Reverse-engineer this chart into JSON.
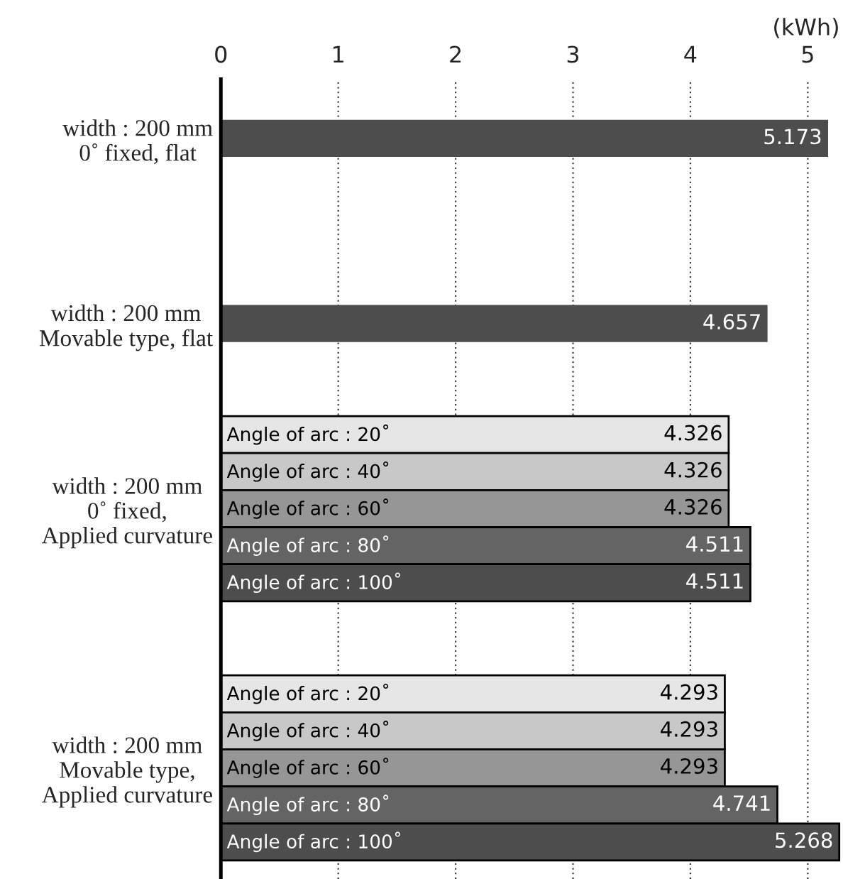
{
  "chart_data": {
    "type": "bar",
    "orientation": "horizontal",
    "xlabel": "(kWh)",
    "categories": [
      "width : 200 mm\n0˚ fixed, flat",
      null,
      null,
      null,
      null,
      "width : 200 mm\nMovable type, flat",
      null,
      null,
      null,
      null,
      "width : 200 mm\n0˚ fixed,\nApplied curvature",
      null,
      null,
      null,
      null,
      null,
      null,
      "width : 200 mm\nMovable type,\nApplied curvature",
      null,
      null
    ],
    "values": [
      5.173,
      null,
      null,
      null,
      null,
      4.657,
      null,
      null,
      4.326,
      4.326,
      4.326,
      4.511,
      4.511,
      null,
      null,
      4.293,
      4.293,
      4.293,
      4.741,
      5.268
    ],
    "colors": [
      "#4d4d4d",
      null,
      null,
      null,
      null,
      "#4d4d4d",
      null,
      null,
      "#e6e6e6",
      "#c8c8c8",
      "#969696",
      "#646464",
      "#4d4d4d",
      null,
      null,
      "#e6e6e6",
      "#c8c8c8",
      "#969696",
      "#646464",
      "#4d4d4d"
    ],
    "annotations": [
      "Angle of arc : 20˚",
      "Angle of arc : 40˚",
      "Angle of arc : 60˚",
      "Angle of arc : 80˚",
      "Angle of arc : 100˚",
      "Angle of arc : 20˚",
      "Angle of arc : 40˚",
      "Angle of arc : 60˚",
      "Angle of arc : 80˚",
      "Angle of arc : 100˚"
    ],
    "data_labels": true,
    "xlim": [
      0,
      5.3
    ],
    "xticks": [
      0,
      1,
      2,
      3,
      4,
      5
    ],
    "grid": "x"
  }
}
